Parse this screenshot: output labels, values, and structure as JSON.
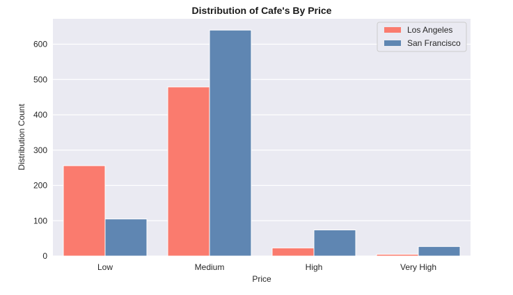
{
  "chart_data": {
    "type": "bar",
    "title": "Distribution of Cafe's By Price",
    "xlabel": "Price",
    "ylabel": "Distribution Count",
    "categories": [
      "Low",
      "Medium",
      "High",
      "Very High"
    ],
    "series": [
      {
        "name": "Los Angeles",
        "values": [
          256,
          479,
          23,
          5
        ],
        "color": "#fa7b6e"
      },
      {
        "name": "San Francisco",
        "values": [
          105,
          640,
          74,
          27
        ],
        "color": "#5f86b2"
      }
    ],
    "ylim": [
      0,
      672
    ],
    "yticks": [
      0,
      100,
      200,
      300,
      400,
      500,
      600
    ],
    "grid": true,
    "legend": "top-right",
    "background": "#eaeaf2"
  }
}
